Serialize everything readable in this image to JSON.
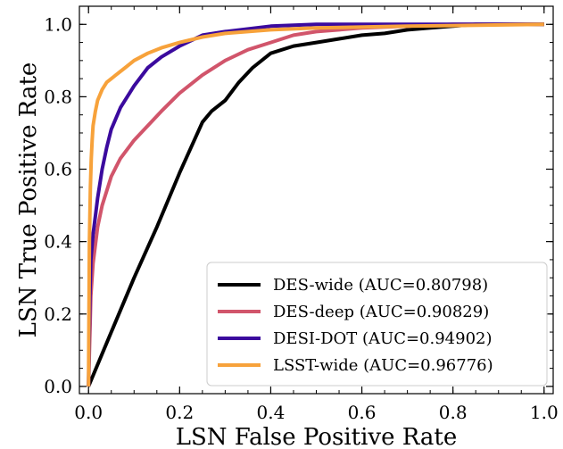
{
  "chart_data": {
    "type": "line",
    "title": "",
    "xlabel": "LSN False Positive Rate",
    "ylabel": "LSN True Positive Rate",
    "xlim": [
      -0.02,
      1.02
    ],
    "ylim": [
      -0.02,
      1.05
    ],
    "xticks": [
      "0.0",
      "0.2",
      "0.4",
      "0.6",
      "0.8",
      "1.0"
    ],
    "yticks": [
      "0.0",
      "0.2",
      "0.4",
      "0.6",
      "0.8",
      "1.0"
    ],
    "grid": false,
    "legend_position": "lower-right",
    "series": [
      {
        "name": "DES-wide (AUC=0.80798)",
        "color": "#000000",
        "x": [
          0.0,
          0.05,
          0.1,
          0.15,
          0.2,
          0.25,
          0.27,
          0.3,
          0.33,
          0.36,
          0.4,
          0.45,
          0.5,
          0.55,
          0.6,
          0.65,
          0.7,
          0.75,
          0.8,
          0.85,
          0.9,
          1.0
        ],
        "y": [
          0.0,
          0.15,
          0.3,
          0.44,
          0.59,
          0.73,
          0.76,
          0.79,
          0.84,
          0.88,
          0.92,
          0.94,
          0.95,
          0.96,
          0.97,
          0.975,
          0.985,
          0.99,
          0.995,
          1.0,
          1.0,
          1.0
        ]
      },
      {
        "name": "DES-deep (AUC=0.90829)",
        "color": "#d1556b",
        "x": [
          0.0,
          0.005,
          0.01,
          0.02,
          0.03,
          0.05,
          0.07,
          0.1,
          0.13,
          0.16,
          0.2,
          0.25,
          0.3,
          0.35,
          0.4,
          0.45,
          0.5,
          0.6,
          0.7,
          0.8,
          1.0
        ],
        "y": [
          0.0,
          0.25,
          0.34,
          0.44,
          0.5,
          0.58,
          0.63,
          0.68,
          0.72,
          0.76,
          0.81,
          0.86,
          0.9,
          0.93,
          0.95,
          0.97,
          0.98,
          0.99,
          0.995,
          1.0,
          1.0
        ]
      },
      {
        "name": "DESI-DOT (AUC=0.94902)",
        "color": "#3b0a9e",
        "x": [
          0.0,
          0.003,
          0.005,
          0.01,
          0.015,
          0.02,
          0.03,
          0.04,
          0.05,
          0.07,
          0.1,
          0.13,
          0.16,
          0.2,
          0.25,
          0.3,
          0.4,
          0.5,
          0.6,
          1.0
        ],
        "y": [
          0.0,
          0.25,
          0.35,
          0.42,
          0.47,
          0.52,
          0.6,
          0.66,
          0.71,
          0.77,
          0.83,
          0.88,
          0.91,
          0.94,
          0.97,
          0.98,
          0.995,
          1.0,
          1.0,
          1.0
        ]
      },
      {
        "name": "LSST-wide (AUC=0.96776)",
        "color": "#f7a23b",
        "x": [
          0.0,
          0.002,
          0.004,
          0.006,
          0.008,
          0.01,
          0.015,
          0.02,
          0.03,
          0.04,
          0.06,
          0.08,
          0.1,
          0.13,
          0.16,
          0.2,
          0.25,
          0.3,
          0.4,
          0.5,
          0.7,
          1.0
        ],
        "y": [
          0.0,
          0.4,
          0.55,
          0.63,
          0.68,
          0.72,
          0.76,
          0.79,
          0.82,
          0.84,
          0.86,
          0.88,
          0.9,
          0.92,
          0.935,
          0.95,
          0.965,
          0.975,
          0.985,
          0.99,
          0.995,
          1.0
        ]
      }
    ]
  }
}
